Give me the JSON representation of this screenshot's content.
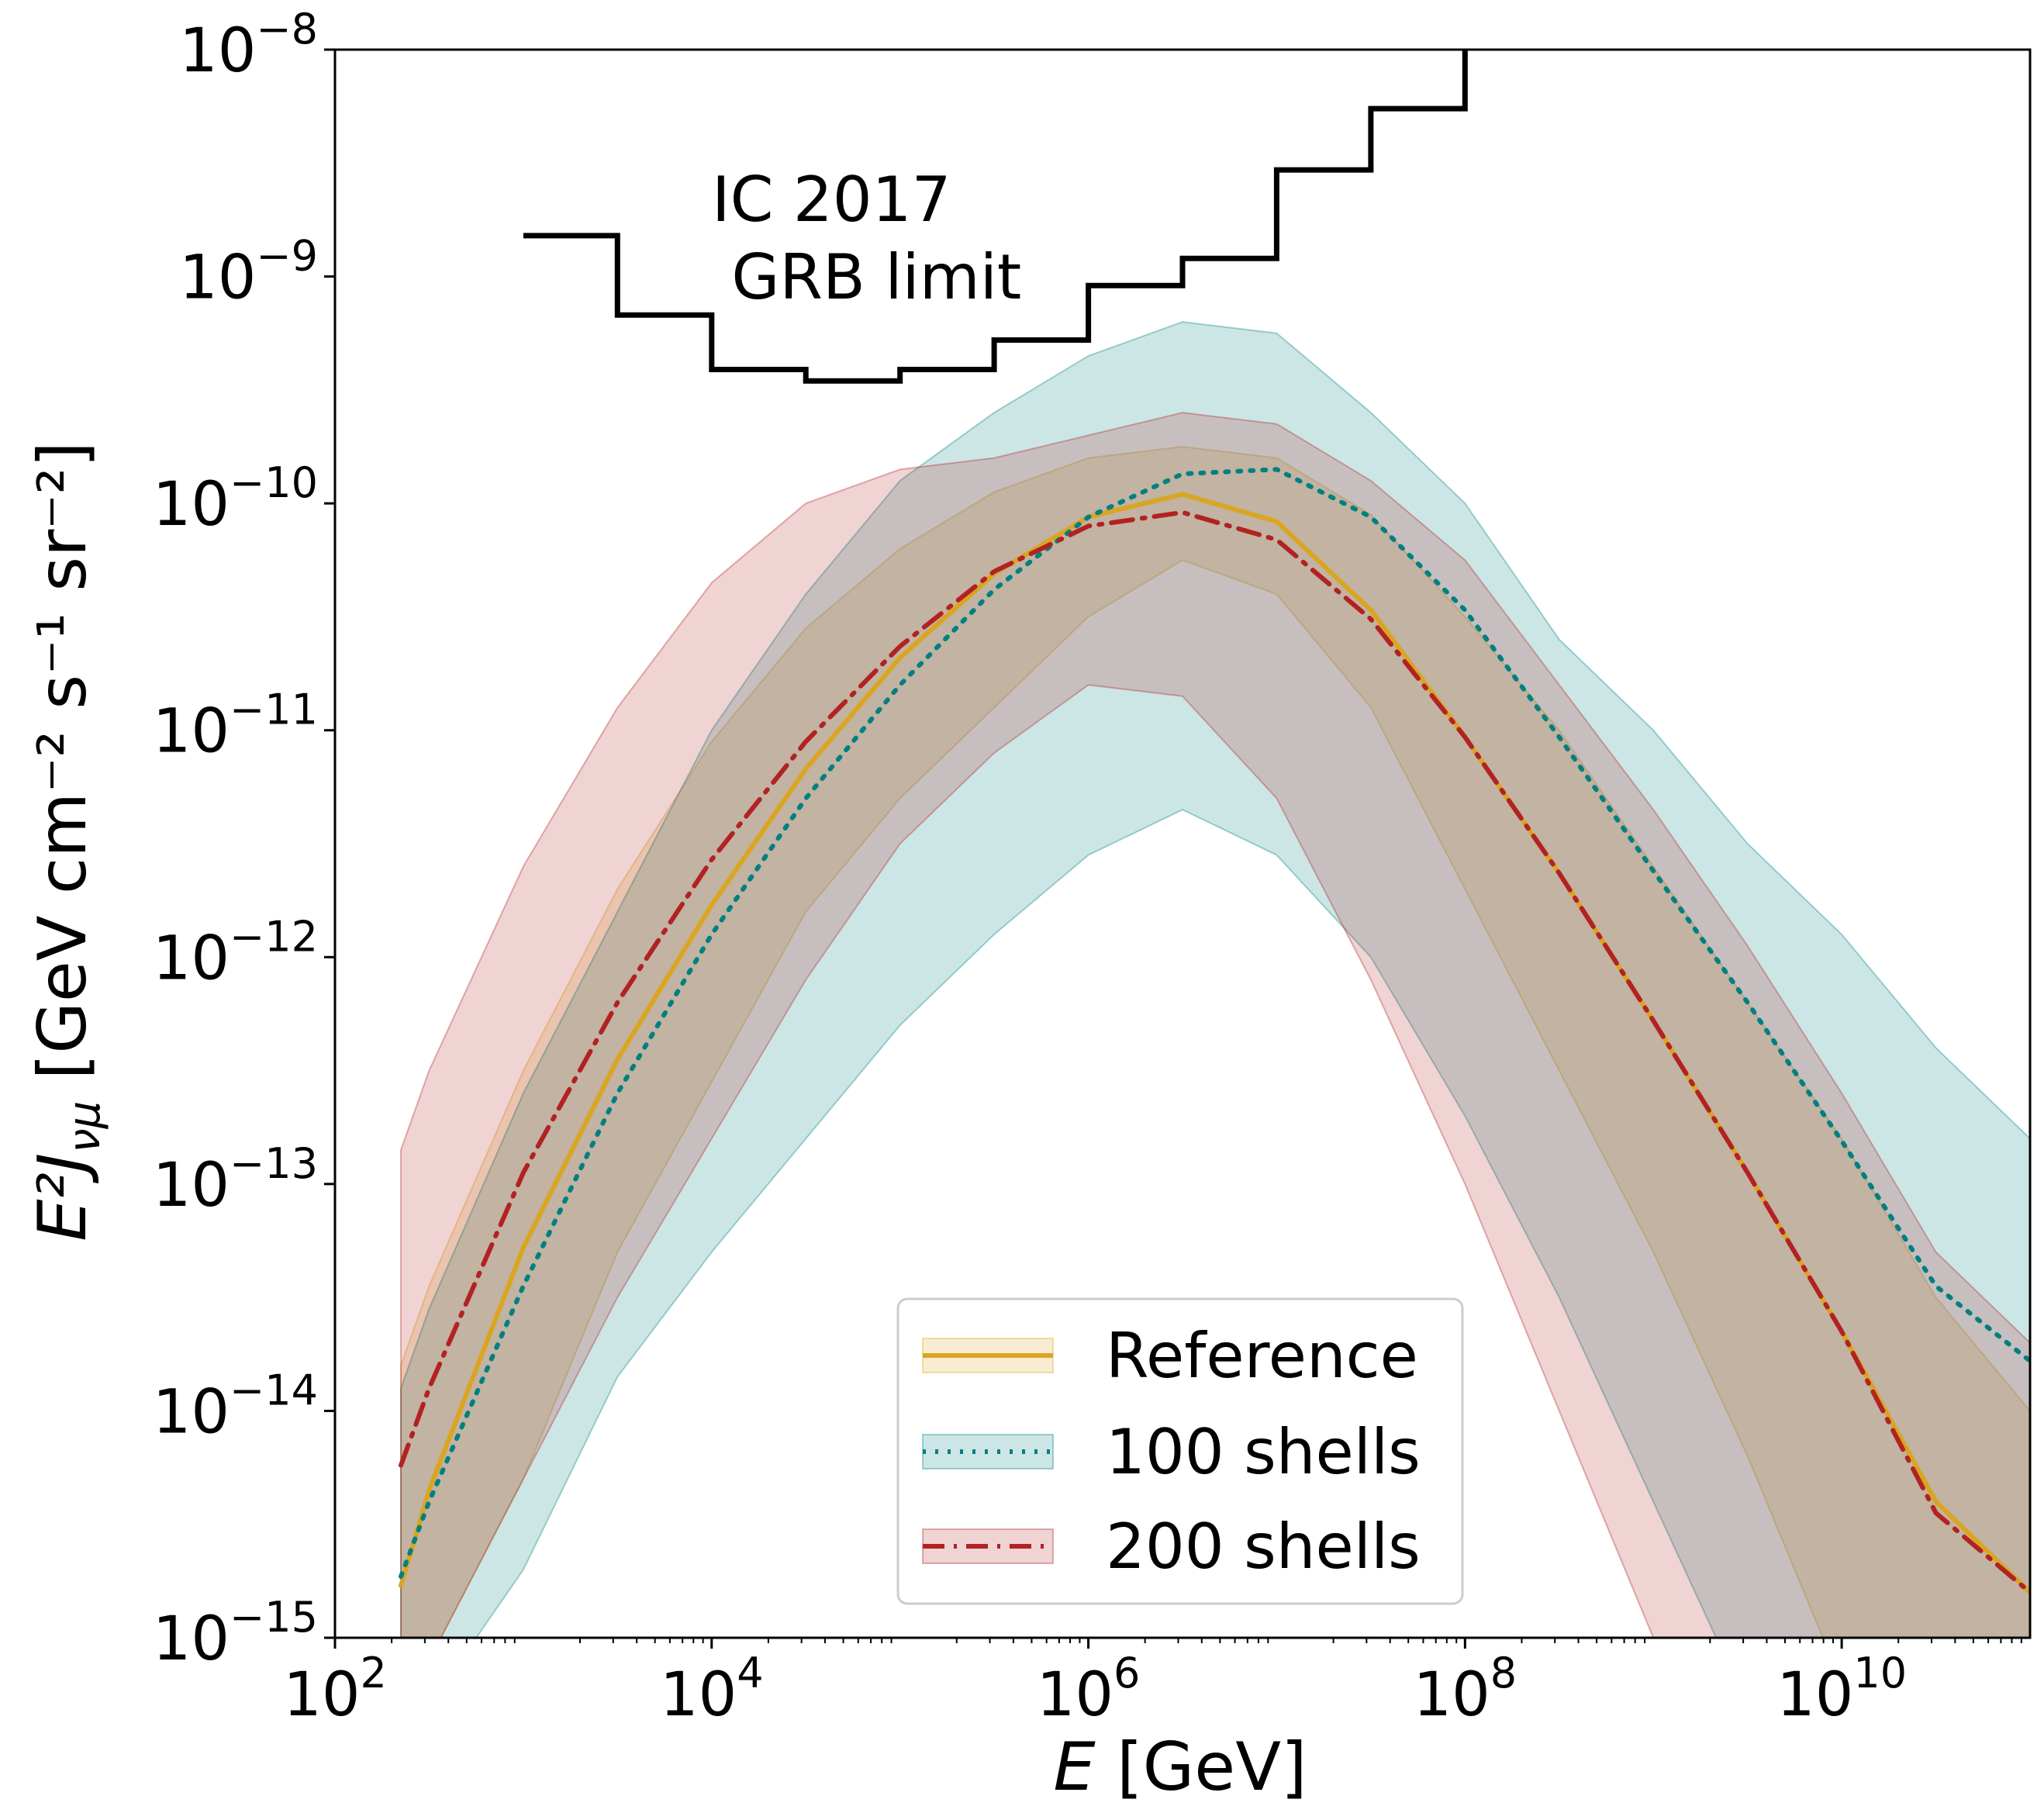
{
  "chart_data": {
    "type": "line",
    "xscale": "log",
    "yscale": "log",
    "xlim": [
      100,
      100000000000
    ],
    "ylim": [
      1e-15,
      1e-08
    ],
    "xlabel_math": "E",
    "xlabel_unit": " [GeV]",
    "ylabel_math": "E²J",
    "ylabel_sub": "νμ",
    "ylabel_unit": " [GeV cm⁻² s⁻¹ sr⁻²]",
    "x_ticks": [
      {
        "value": 100,
        "base": "10",
        "exp": "2"
      },
      {
        "value": 10000,
        "base": "10",
        "exp": "4"
      },
      {
        "value": 1000000,
        "base": "10",
        "exp": "6"
      },
      {
        "value": 100000000,
        "base": "10",
        "exp": "8"
      },
      {
        "value": 10000000000,
        "base": "10",
        "exp": "10"
      }
    ],
    "y_ticks": [
      {
        "value": 1e-08,
        "base": "10",
        "exp": "−8"
      },
      {
        "value": 1e-09,
        "base": "10",
        "exp": "−9"
      },
      {
        "value": 1e-10,
        "base": "10",
        "exp": "−10"
      },
      {
        "value": 1e-11,
        "base": "10",
        "exp": "−11"
      },
      {
        "value": 1e-12,
        "base": "10",
        "exp": "−12"
      },
      {
        "value": 1e-13,
        "base": "10",
        "exp": "−13"
      },
      {
        "value": 1e-14,
        "base": "10",
        "exp": "−14"
      },
      {
        "value": 1e-15,
        "base": "10",
        "exp": "−15"
      }
    ],
    "limit": {
      "name": "IC 2017 GRB limit",
      "label_line1": "IC 2017",
      "label_line2": " GRB limit",
      "color": "#000000",
      "points": [
        [
          3.0,
          -8.82
        ],
        [
          3.5,
          -8.82
        ],
        [
          3.5,
          -9.17
        ],
        [
          4.0,
          -9.17
        ],
        [
          4.0,
          -9.41
        ],
        [
          4.5,
          -9.41
        ],
        [
          4.5,
          -9.46
        ],
        [
          5.0,
          -9.46
        ],
        [
          5.0,
          -9.41
        ],
        [
          5.5,
          -9.41
        ],
        [
          5.5,
          -9.28
        ],
        [
          6.0,
          -9.28
        ],
        [
          6.0,
          -9.04
        ],
        [
          6.5,
          -9.04
        ],
        [
          6.5,
          -8.92
        ],
        [
          7.0,
          -8.92
        ],
        [
          7.0,
          -8.53
        ],
        [
          7.5,
          -8.53
        ],
        [
          7.5,
          -8.26
        ],
        [
          8.0,
          -8.26
        ],
        [
          8.0,
          -7.9
        ]
      ]
    },
    "series": [
      {
        "name": "Reference",
        "legend_label": "Reference",
        "color": "#DAA520",
        "dash": "solid",
        "x_log": [
          2.35,
          2.5,
          3.0,
          3.5,
          4.0,
          4.5,
          5.0,
          5.5,
          6.0,
          6.5,
          7.0,
          7.5,
          8.0,
          8.5,
          9.0,
          9.5,
          10.0,
          10.5,
          11.0
        ],
        "y_log": [
          -14.77,
          -14.35,
          -13.28,
          -12.45,
          -11.77,
          -11.17,
          -10.68,
          -10.31,
          -10.06,
          -9.96,
          -10.08,
          -10.47,
          -11.03,
          -11.63,
          -12.28,
          -12.95,
          -13.65,
          -14.4,
          -14.8
        ],
        "band_upper": [
          -13.8,
          -13.45,
          -12.5,
          -11.7,
          -11.05,
          -10.55,
          -10.2,
          -9.95,
          -9.8,
          -9.75,
          -9.8,
          -10.05,
          -10.5,
          -11.0,
          -11.6,
          -12.2,
          -12.8,
          -13.5,
          -14.0
        ],
        "band_lower": [
          -15.4,
          -15.1,
          -14.3,
          -13.3,
          -12.55,
          -11.8,
          -11.3,
          -10.9,
          -10.5,
          -10.25,
          -10.4,
          -10.9,
          -11.7,
          -12.5,
          -13.3,
          -14.2,
          -15.2,
          -15.6,
          -15.7
        ]
      },
      {
        "name": "100 shells",
        "legend_label": "100 shells",
        "color": "#008080",
        "dash": "dotted",
        "x_log": [
          2.35,
          2.5,
          3.0,
          3.5,
          4.0,
          4.5,
          5.0,
          5.5,
          6.0,
          6.5,
          7.0,
          7.5,
          8.0,
          8.5,
          9.0,
          9.5,
          10.0,
          10.5,
          11.0
        ],
        "y_log": [
          -14.73,
          -14.4,
          -13.45,
          -12.6,
          -11.9,
          -11.3,
          -10.8,
          -10.38,
          -10.06,
          -9.87,
          -9.85,
          -10.06,
          -10.47,
          -11.03,
          -11.62,
          -12.2,
          -12.81,
          -13.45,
          -13.78
        ],
        "band_upper": [
          -13.9,
          -13.55,
          -12.6,
          -11.8,
          -11.0,
          -10.4,
          -9.9,
          -9.6,
          -9.35,
          -9.2,
          -9.25,
          -9.6,
          -10.0,
          -10.6,
          -11.0,
          -11.5,
          -11.9,
          -12.4,
          -12.8
        ],
        "band_lower": [
          -15.6,
          -15.3,
          -14.7,
          -13.85,
          -13.3,
          -12.8,
          -12.3,
          -11.9,
          -11.55,
          -11.35,
          -11.55,
          -12.0,
          -12.7,
          -13.5,
          -14.4,
          -15.3,
          -15.7,
          -15.8,
          -15.9
        ]
      },
      {
        "name": "200 shells",
        "legend_label": "200 shells",
        "color": "#B22222",
        "dash": "dashdot",
        "x_log": [
          2.35,
          2.5,
          3.0,
          3.5,
          4.0,
          4.5,
          5.0,
          5.5,
          6.0,
          6.5,
          7.0,
          7.5,
          8.0,
          8.5,
          9.0,
          9.5,
          10.0,
          10.5,
          11.0
        ],
        "y_log": [
          -14.24,
          -13.9,
          -12.95,
          -12.2,
          -11.57,
          -11.05,
          -10.63,
          -10.3,
          -10.1,
          -10.04,
          -10.16,
          -10.51,
          -11.03,
          -11.63,
          -12.28,
          -12.95,
          -13.65,
          -14.45,
          -14.8
        ],
        "band_upper": [
          -12.85,
          -12.5,
          -11.6,
          -10.9,
          -10.35,
          -10.0,
          -9.85,
          -9.8,
          -9.7,
          -9.6,
          -9.65,
          -9.9,
          -10.25,
          -10.8,
          -11.35,
          -11.95,
          -12.6,
          -13.3,
          -13.7
        ],
        "band_lower": [
          -15.4,
          -15.1,
          -14.3,
          -13.5,
          -12.8,
          -12.1,
          -11.5,
          -11.1,
          -10.8,
          -10.85,
          -11.3,
          -12.1,
          -13.0,
          -14.0,
          -15.0,
          -15.6,
          -15.7,
          -15.8,
          -15.9
        ]
      }
    ],
    "legend_position": "lower center"
  }
}
